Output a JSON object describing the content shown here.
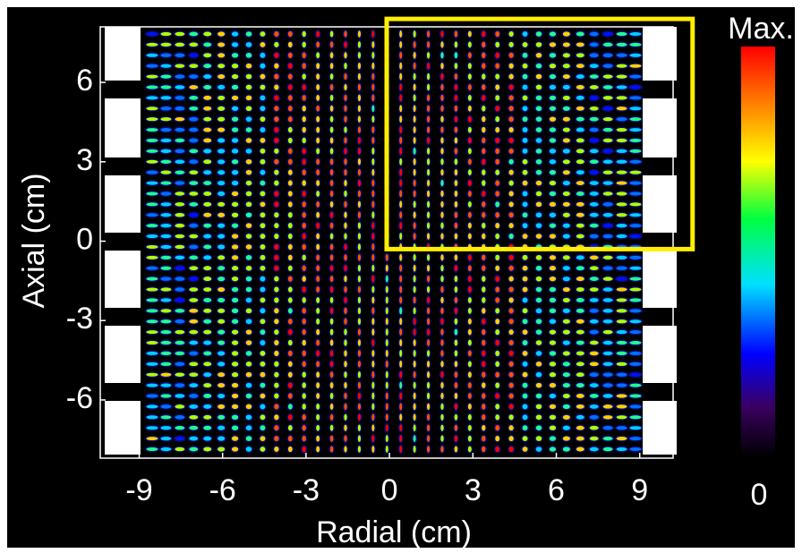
{
  "chart_data": {
    "type": "image",
    "xlabel": "Radial (cm)",
    "ylabel": "Axial (cm)",
    "xlim": [
      -10.4,
      10.2
    ],
    "xticks": [
      -9,
      -6,
      -3,
      0,
      3,
      6,
      9
    ],
    "ylim": [
      -8.2,
      8.1
    ],
    "yticks": [
      -6,
      -3,
      0,
      3,
      6
    ],
    "colorbar": {
      "max_label": "Max.",
      "min_label": "0"
    },
    "highlight_box": {
      "xlim": [
        -0.1,
        10.9
      ],
      "ylim": [
        -0.3,
        8.4
      ],
      "color": "#ffee00"
    }
  }
}
